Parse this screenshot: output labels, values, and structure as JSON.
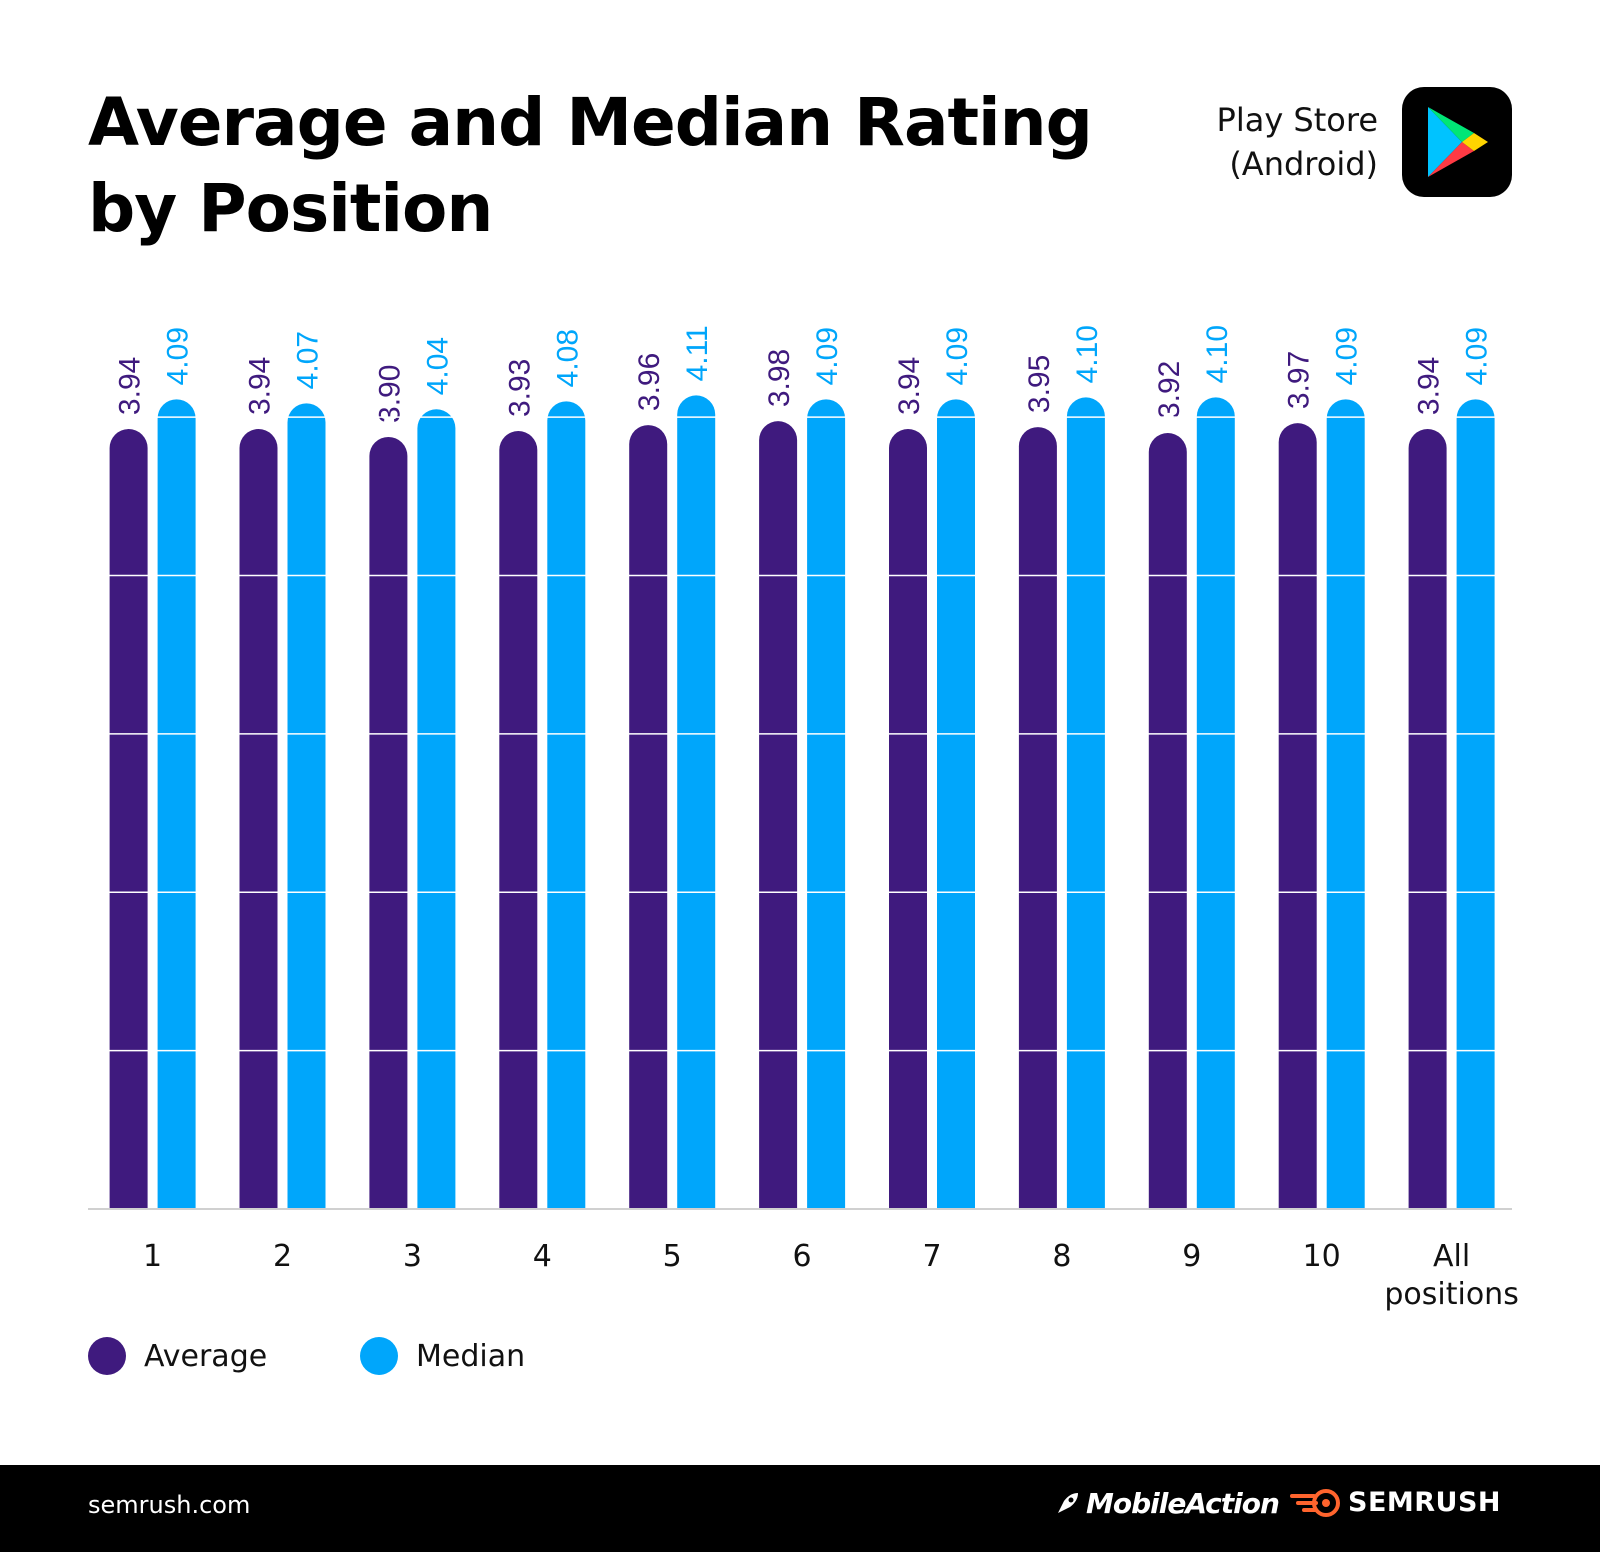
{
  "header": {
    "title_line1": "Average and Median Rating",
    "title_line2": "by Position",
    "store_line1": "Play Store",
    "store_line2": "(Android)"
  },
  "legend": {
    "average": "Average",
    "median": "Median"
  },
  "footer": {
    "site": "semrush.com",
    "brand1": "MobileAction",
    "brand2": "SEMRUSH"
  },
  "colors": {
    "average": "#3f1a7e",
    "median": "#00a6fb",
    "grid": "#ffffff",
    "axis": "#d0d0d0",
    "footer_bg": "#000000",
    "semrush_orange": "#ff642d"
  },
  "chart_data": {
    "type": "bar",
    "title": "Average and Median Rating by Position",
    "xlabel": "",
    "ylabel": "",
    "ylim": [
      0,
      4.4
    ],
    "categories": [
      "1",
      "2",
      "3",
      "4",
      "5",
      "6",
      "7",
      "8",
      "9",
      "10",
      "All positions"
    ],
    "series": [
      {
        "name": "Average",
        "values": [
          3.94,
          3.94,
          3.9,
          3.93,
          3.96,
          3.98,
          3.94,
          3.95,
          3.92,
          3.97,
          3.94
        ]
      },
      {
        "name": "Median",
        "values": [
          4.09,
          4.07,
          4.04,
          4.08,
          4.11,
          4.09,
          4.09,
          4.1,
          4.1,
          4.09,
          4.09
        ]
      }
    ],
    "grid": true,
    "legend_position": "bottom-left"
  }
}
